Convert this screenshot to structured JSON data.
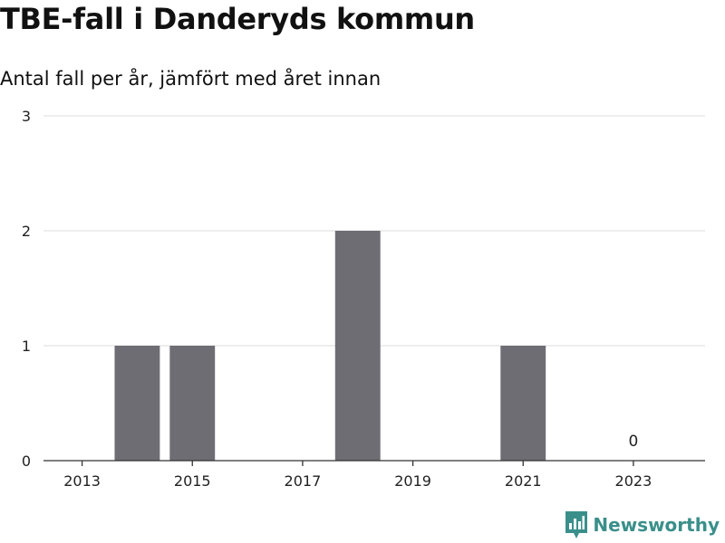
{
  "title": "TBE-fall i Danderyds kommun",
  "subtitle": "Antal fall per år, jämfört med året innan",
  "brand": {
    "name": "Newsworthy",
    "icon": "newsworthy-logo-icon",
    "color": "#3a8f8a"
  },
  "chart_data": {
    "type": "bar",
    "title": "TBE-fall i Danderyds kommun",
    "subtitle": "Antal fall per år, jämfört med året innan",
    "xlabel": "",
    "ylabel": "",
    "x": [
      2013,
      2014,
      2015,
      2016,
      2017,
      2018,
      2019,
      2020,
      2021,
      2022,
      2023
    ],
    "values": [
      0,
      1,
      1,
      0,
      0,
      2,
      0,
      0,
      1,
      0,
      0
    ],
    "xticks": [
      "2013",
      "2015",
      "2017",
      "2019",
      "2021",
      "2023"
    ],
    "yticks": [
      "0",
      "1",
      "2",
      "3"
    ],
    "ylim": [
      0,
      3
    ],
    "grid": true,
    "bar_color": "#6e6d73",
    "annotations": [
      {
        "x": 2023,
        "text": "0"
      }
    ]
  }
}
